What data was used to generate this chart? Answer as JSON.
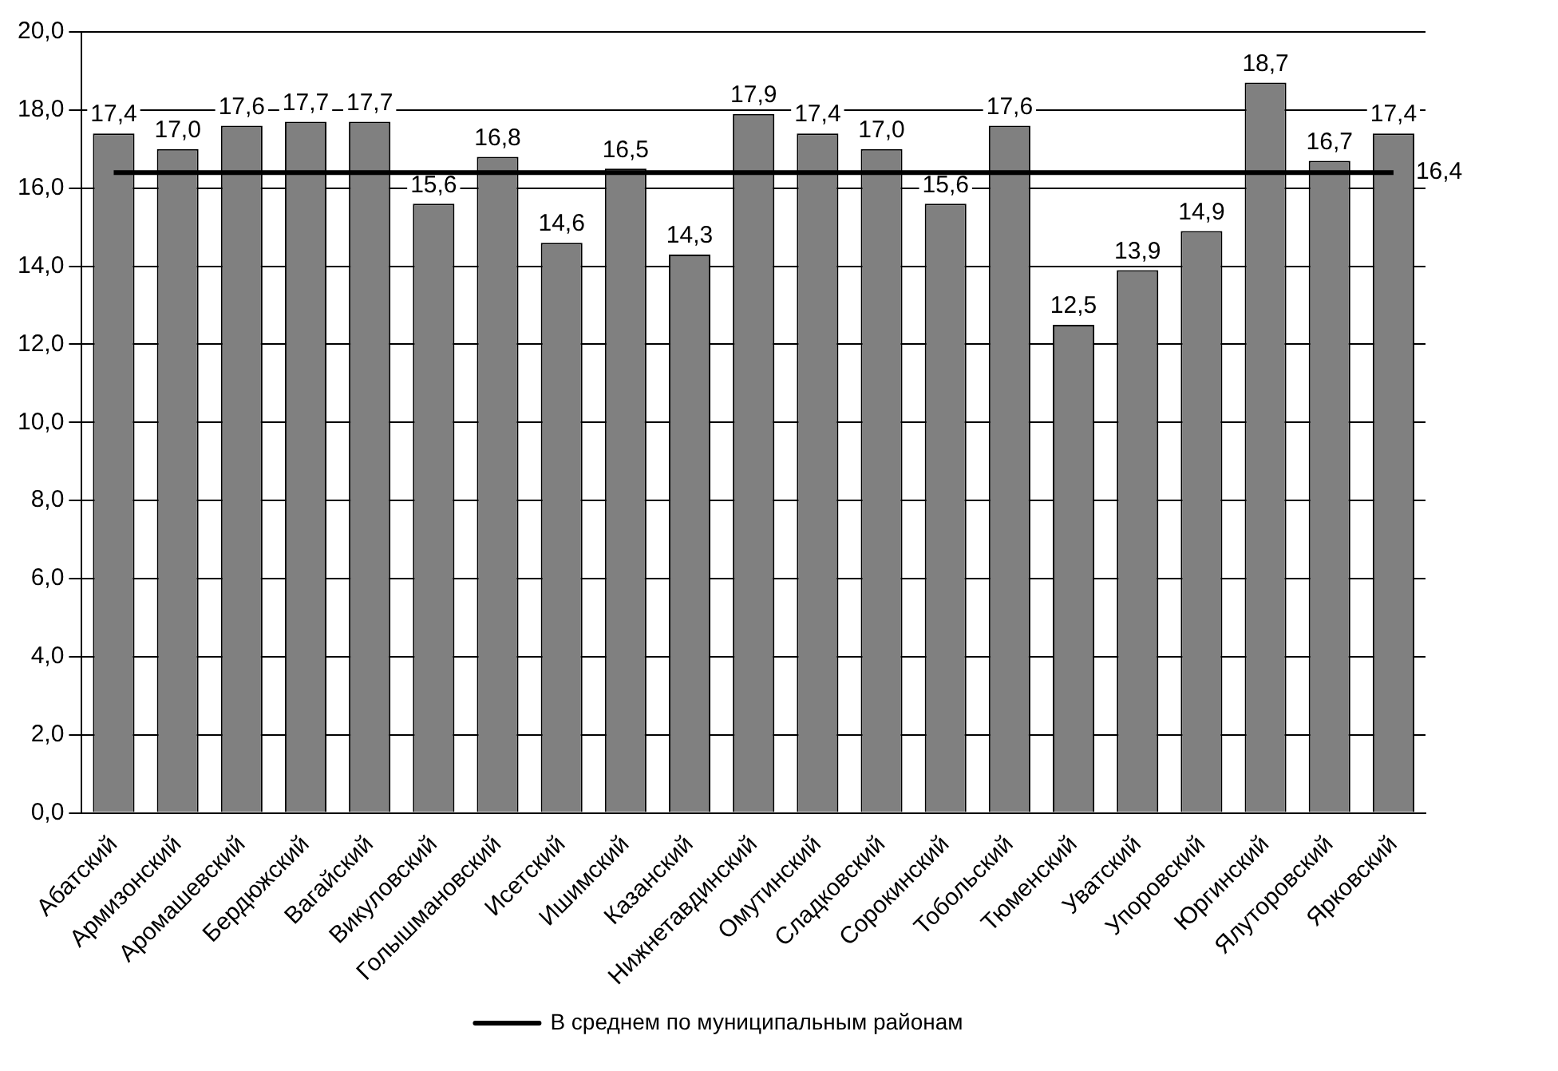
{
  "chart_data": {
    "type": "bar",
    "categories": [
      "Абатский",
      "Армизонский",
      "Аромашевский",
      "Бердюжский",
      "Вагайский",
      "Викуловский",
      "Голышмановский",
      "Исетский",
      "Ишимский",
      "Казанский",
      "Нижнетавдинский",
      "Омутинский",
      "Сладковский",
      "Сорокинский",
      "Тобольский",
      "Тюменский",
      "Уватский",
      "Упоровский",
      "Юргинский",
      "Ялуторовский",
      "Ярковский"
    ],
    "series": [
      {
        "color": "#808080",
        "values": [
          17.4,
          17.0,
          17.6,
          17.7,
          17.7,
          15.6,
          16.8,
          14.6,
          16.5,
          14.3,
          17.9,
          17.4,
          17.0,
          15.6,
          17.6,
          12.5,
          13.9,
          14.9,
          18.7,
          16.7,
          17.4
        ],
        "value_labels": [
          "17,4",
          "17,0",
          "17,6",
          "17,7",
          "17,7",
          "15,6",
          "16,8",
          "14,6",
          "16,5",
          "14,3",
          "17,9",
          "17,4",
          "17,0",
          "15,6",
          "17,6",
          "12,5",
          "13,9",
          "14,9",
          "18,7",
          "16,7",
          "17,4"
        ]
      },
      {
        "type": "line",
        "name": "В среднем по муниципальным районам",
        "color": "#000000",
        "values": [
          16.4,
          16.4,
          16.4,
          16.4,
          16.4,
          16.4,
          16.4,
          16.4,
          16.4,
          16.4,
          16.4,
          16.4,
          16.4,
          16.4,
          16.4,
          16.4,
          16.4,
          16.4,
          16.4,
          16.4,
          16.4
        ],
        "value_labels": [
          null,
          null,
          null,
          null,
          null,
          null,
          null,
          null,
          null,
          null,
          null,
          null,
          null,
          null,
          null,
          null,
          null,
          null,
          null,
          null,
          "16,4"
        ]
      }
    ],
    "ylim": [
      0,
      20
    ],
    "yticks": [
      {
        "value": 0,
        "label": "0,0"
      },
      {
        "value": 2,
        "label": "2,0"
      },
      {
        "value": 4,
        "label": "4,0"
      },
      {
        "value": 6,
        "label": "6,0"
      },
      {
        "value": 8,
        "label": "8,0"
      },
      {
        "value": 10,
        "label": "10,0"
      },
      {
        "value": 12,
        "label": "12,0"
      },
      {
        "value": 14,
        "label": "14,0"
      },
      {
        "value": 16,
        "label": "16,0"
      },
      {
        "value": 18,
        "label": "18,0"
      },
      {
        "value": 20,
        "label": "20,0"
      }
    ],
    "grid": "y",
    "legend": "bottom",
    "marker": "none",
    "line_style": "solid"
  }
}
